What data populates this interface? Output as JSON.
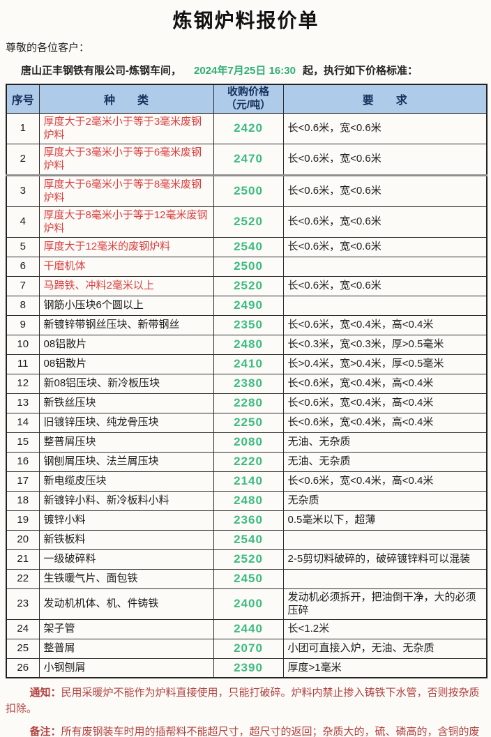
{
  "title": "炼钢炉料报价单",
  "greeting": "尊敬的各位客户：",
  "intro": {
    "company": "唐山正丰钢铁有限公司-炼钢车间，",
    "datetime": "2024年7月25日 16:30",
    "suffix": "起，执行如下价格标准："
  },
  "table": {
    "headers": {
      "index": "序号",
      "kind": "种　　类",
      "price": "收购价格\n（元/吨）",
      "req": "要　　求"
    },
    "rows": [
      {
        "no": "1",
        "kind": "厚度大于2毫米小于等于3毫米废钢炉料",
        "price": "2420",
        "req": "长<0.6米，宽<0.6米",
        "red": true
      },
      {
        "no": "2",
        "kind": "厚度大于3毫米小于等于6毫米废钢炉料",
        "price": "2470",
        "req": "长<0.6米，宽<0.6米",
        "red": true
      },
      {
        "no": "3",
        "kind": "厚度大于6毫米小于等于8毫米废钢炉料",
        "price": "2500",
        "req": "长<0.6米，宽<0.6米",
        "red": true,
        "thick_top": true
      },
      {
        "no": "4",
        "kind": "厚度大于8毫米小于等于12毫米废钢炉料",
        "price": "2520",
        "req": "长<0.6米，宽<0.6米",
        "red": true
      },
      {
        "no": "5",
        "kind": "厚度大于12毫米的废钢炉料",
        "price": "2540",
        "req": "长<0.6米，宽<0.6米",
        "red": true
      },
      {
        "no": "6",
        "kind": "干磨机体",
        "price": "2500",
        "req": "",
        "red": true
      },
      {
        "no": "7",
        "kind": "马蹄铁、冲料2毫米以上",
        "price": "2520",
        "req": "长<0.6米，宽<0.6米",
        "red": true
      },
      {
        "no": "8",
        "kind": "钢筋小压块6个圆以上",
        "price": "2490",
        "req": ""
      },
      {
        "no": "9",
        "kind": "新镀锌带钢丝压块、新带钢丝",
        "price": "2350",
        "req": "长<0.6米，宽<0.4米，高<0.4米"
      },
      {
        "no": "10",
        "kind": "08铝散片",
        "price": "2480",
        "req": "长<0.3米，宽<0.3米，厚>0.5毫米"
      },
      {
        "no": "11",
        "kind": "08铝散片",
        "price": "2410",
        "req": "长>0.4米，宽>0.4米，厚<0.5毫米"
      },
      {
        "no": "12",
        "kind": "新08铝压块、新冷板压块",
        "price": "2380",
        "req": "长<0.6米，宽<0.4米，高<0.4米"
      },
      {
        "no": "13",
        "kind": "新铁丝压块",
        "price": "2280",
        "req": "长<0.6米，宽<0.4米，高<0.4米"
      },
      {
        "no": "14",
        "kind": "旧镀锌压块、纯龙骨压块",
        "price": "2250",
        "req": "长<0.6米，宽<0.4米，高<0.4米"
      },
      {
        "no": "15",
        "kind": "整普屑压块",
        "price": "2080",
        "req": "无油、无杂质"
      },
      {
        "no": "16",
        "kind": "钢刨屑压块、法兰屑压块",
        "price": "2220",
        "req": "无油、无杂质"
      },
      {
        "no": "17",
        "kind": "新电缆皮压块",
        "price": "2140",
        "req": "长<0.6米，宽<0.4米，高<0.4米"
      },
      {
        "no": "18",
        "kind": "新镀锌小料、新冷板料小料",
        "price": "2480",
        "req": "无杂质"
      },
      {
        "no": "19",
        "kind": "镀锌小料",
        "price": "2360",
        "req": "0.5毫米以下，超薄"
      },
      {
        "no": "20",
        "kind": "新铁板料",
        "price": "2540",
        "req": ""
      },
      {
        "no": "21",
        "kind": "一级破碎料",
        "price": "2520",
        "req": "2-5剪切料破碎的，破碎镀锌料可以混装"
      },
      {
        "no": "22",
        "kind": "生铁暖气片、面包铁",
        "price": "2450",
        "req": ""
      },
      {
        "no": "23",
        "kind": "发动机机体、机、件铸铁",
        "price": "2400",
        "req": "发动机必须拆开，把油倒干净，大的必须压碎"
      },
      {
        "no": "24",
        "kind": "架子管",
        "price": "2440",
        "req": "长<1.2米"
      },
      {
        "no": "25",
        "kind": "整普屑",
        "price": "2070",
        "req": "小团可直接入炉，无油、无杂质"
      },
      {
        "no": "26",
        "kind": "小钢刨屑",
        "price": "2390",
        "req": "厚度>1毫米"
      }
    ]
  },
  "notes": [
    {
      "label": "通知：",
      "text": "民用采暖炉不能作为炉料直接使用，只能打破碎。炉料内禁止掺入铸铁下水管，否则按杂质扣除。"
    },
    {
      "label": "备注：",
      "text": "所有废钢装车时用的插帮料不能超尺寸，超尺寸的返回；杂质大的，硫、磷高的，含铜的废钢，一律拒收；有封闭物罚款；爆炸物重罚；如掺杂使假，一律不予结账。"
    }
  ],
  "colors": {
    "header_bg": "#aecbe9",
    "header_text": "#16305c",
    "price_green": "#3bbc7e",
    "date_green": "#2fae74",
    "item_red": "#d9403f",
    "note_red": "#b2403e"
  }
}
